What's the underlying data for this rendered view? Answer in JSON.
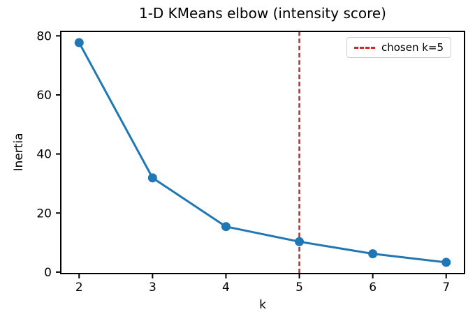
{
  "chart_data": {
    "type": "line",
    "title": "1-D KMeans elbow (intensity score)",
    "xlabel": "k",
    "ylabel": "Inertia",
    "x": [
      2,
      3,
      4,
      5,
      6,
      7
    ],
    "series": [
      {
        "name": "inertia",
        "values": [
          77.7,
          31.9,
          15.4,
          10.3,
          6.2,
          3.3
        ]
      }
    ],
    "xticks": [
      2,
      3,
      4,
      5,
      6,
      7
    ],
    "yticks": [
      0,
      20,
      40,
      60,
      80
    ],
    "xlim": [
      1.75,
      7.25
    ],
    "ylim": [
      -0.5,
      81.5
    ],
    "grid": false,
    "legend": {
      "position": "upper right",
      "entries": [
        "chosen k=5"
      ]
    },
    "vline": {
      "x": 5,
      "style": "dashed"
    },
    "colors": {
      "line": "#1f77b4",
      "marker": "#1f77b4",
      "vline": "#d62728",
      "axis": "#000000",
      "text": "#000000",
      "legend_border": "#cccccc",
      "background": "#ffffff"
    }
  }
}
